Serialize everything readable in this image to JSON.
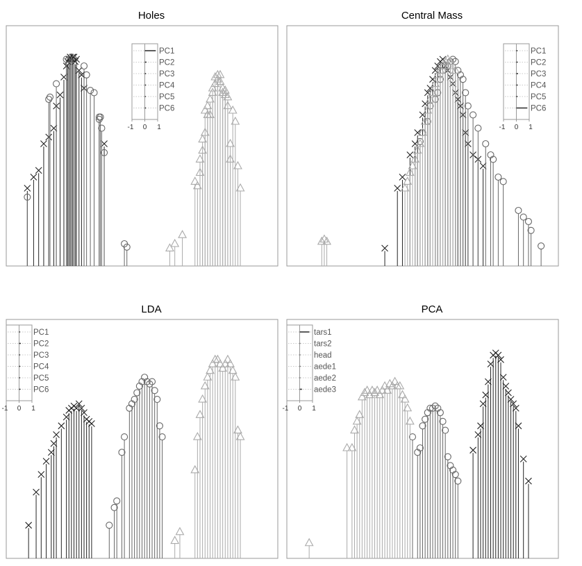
{
  "figure": {
    "colors": {
      "dark": "#222222",
      "mid": "#666666",
      "light": "#aaaaaa",
      "frame": "#999999"
    },
    "markers": {
      "dark": "x",
      "mid": "circle",
      "light": "triangle"
    }
  },
  "chart_data": [
    {
      "type": "scatter",
      "subtype": "grand-tour-stem-plot",
      "title": "Holes",
      "xlabel": "",
      "ylabel": "",
      "xlim": [
        0,
        1
      ],
      "ylim": [
        0,
        1
      ],
      "axis_ticks_visible": false,
      "legend": {
        "placement": "top-center-left",
        "labels": [
          "PC1",
          "PC2",
          "PC3",
          "PC4",
          "PC5",
          "PC6"
        ],
        "ticks": [
          "-1",
          "0",
          "1"
        ],
        "weights": [
          0.95,
          0.15,
          0.1,
          0.1,
          0.08,
          0.1
        ]
      },
      "series": [
        {
          "group": "dark",
          "marker": "x",
          "x": [
            0.045,
            0.07,
            0.09,
            0.11,
            0.13,
            0.15,
            0.16,
            0.175,
            0.19,
            0.2,
            0.205,
            0.21,
            0.215,
            0.22,
            0.225,
            0.23,
            0.235,
            0.24,
            0.25,
            0.26,
            0.27,
            0.35
          ],
          "y": [
            0.35,
            0.4,
            0.43,
            0.55,
            0.58,
            0.62,
            0.72,
            0.77,
            0.85,
            0.9,
            0.92,
            0.93,
            0.94,
            0.93,
            0.94,
            0.94,
            0.92,
            0.93,
            0.88,
            0.86,
            0.8,
            0.55
          ]
        },
        {
          "group": "mid",
          "marker": "circle",
          "x": [
            0.045,
            0.13,
            0.135,
            0.16,
            0.2,
            0.21,
            0.22,
            0.23,
            0.27,
            0.28,
            0.295,
            0.31,
            0.33,
            0.33,
            0.335,
            0.34,
            0.35,
            0.43,
            0.44
          ],
          "y": [
            0.31,
            0.75,
            0.76,
            0.82,
            0.93,
            0.93,
            0.94,
            0.93,
            0.9,
            0.86,
            0.79,
            0.78,
            0.67,
            0.66,
            0.67,
            0.62,
            0.51,
            0.1,
            0.085
          ]
        },
        {
          "group": "light",
          "marker": "triangle",
          "x": [
            0.61,
            0.63,
            0.66,
            0.71,
            0.72,
            0.73,
            0.73,
            0.74,
            0.74,
            0.75,
            0.75,
            0.76,
            0.76,
            0.77,
            0.77,
            0.78,
            0.78,
            0.79,
            0.79,
            0.8,
            0.8,
            0.81,
            0.81,
            0.82,
            0.82,
            0.83,
            0.83,
            0.84,
            0.84,
            0.85,
            0.85,
            0.86,
            0.87,
            0.88,
            0.89
          ],
          "y": [
            0.08,
            0.1,
            0.14,
            0.38,
            0.36,
            0.42,
            0.48,
            0.52,
            0.57,
            0.6,
            0.7,
            0.68,
            0.72,
            0.75,
            0.68,
            0.8,
            0.78,
            0.82,
            0.85,
            0.84,
            0.86,
            0.83,
            0.86,
            0.8,
            0.78,
            0.79,
            0.77,
            0.76,
            0.72,
            0.55,
            0.48,
            0.7,
            0.65,
            0.45,
            0.35
          ]
        }
      ]
    },
    {
      "type": "scatter",
      "subtype": "grand-tour-stem-plot",
      "title": "Central Mass",
      "xlabel": "",
      "ylabel": "",
      "xlim": [
        0,
        1
      ],
      "ylim": [
        0,
        1
      ],
      "axis_ticks_visible": false,
      "legend": {
        "placement": "top-right",
        "labels": [
          "PC1",
          "PC2",
          "PC3",
          "PC4",
          "PC5",
          "PC6"
        ],
        "ticks": [
          "-1",
          "0",
          "1"
        ],
        "weights": [
          0.1,
          0.12,
          0.15,
          0.12,
          0.1,
          0.95
        ]
      },
      "series": [
        {
          "group": "dark",
          "marker": "x",
          "x": [
            0.35,
            0.4,
            0.42,
            0.45,
            0.47,
            0.48,
            0.5,
            0.51,
            0.52,
            0.53,
            0.54,
            0.55,
            0.56,
            0.57,
            0.58,
            0.59,
            0.6,
            0.61,
            0.62,
            0.63,
            0.64,
            0.65,
            0.66,
            0.67,
            0.68,
            0.7,
            0.72,
            0.74
          ],
          "y": [
            0.08,
            0.35,
            0.4,
            0.5,
            0.55,
            0.6,
            0.68,
            0.73,
            0.78,
            0.8,
            0.84,
            0.88,
            0.9,
            0.92,
            0.93,
            0.9,
            0.88,
            0.85,
            0.82,
            0.78,
            0.75,
            0.72,
            0.68,
            0.6,
            0.55,
            0.5,
            0.48,
            0.45
          ]
        },
        {
          "group": "mid",
          "marker": "circle",
          "x": [
            0.49,
            0.5,
            0.52,
            0.53,
            0.55,
            0.56,
            0.57,
            0.58,
            0.59,
            0.6,
            0.61,
            0.62,
            0.63,
            0.64,
            0.65,
            0.66,
            0.67,
            0.68,
            0.7,
            0.72,
            0.75,
            0.77,
            0.78,
            0.8,
            0.82,
            0.88,
            0.9,
            0.92,
            0.93,
            0.97
          ],
          "y": [
            0.56,
            0.6,
            0.65,
            0.72,
            0.75,
            0.78,
            0.84,
            0.88,
            0.9,
            0.9,
            0.92,
            0.93,
            0.92,
            0.88,
            0.86,
            0.84,
            0.78,
            0.72,
            0.68,
            0.62,
            0.55,
            0.5,
            0.48,
            0.4,
            0.38,
            0.25,
            0.22,
            0.2,
            0.16,
            0.09
          ]
        },
        {
          "group": "light",
          "marker": "triangle",
          "x": [
            0.1,
            0.11,
            0.12,
            0.43,
            0.44,
            0.45,
            0.46,
            0.47,
            0.48,
            0.49,
            0.5,
            0.51,
            0.52,
            0.53,
            0.54,
            0.55,
            0.56,
            0.57,
            0.58,
            0.59,
            0.6,
            0.61,
            0.62,
            0.63
          ],
          "y": [
            0.11,
            0.12,
            0.11,
            0.35,
            0.38,
            0.42,
            0.45,
            0.48,
            0.52,
            0.55,
            0.6,
            0.65,
            0.7,
            0.75,
            0.78,
            0.82,
            0.86,
            0.88,
            0.9,
            0.92,
            0.93,
            0.92,
            0.9,
            0.88
          ]
        }
      ]
    },
    {
      "type": "scatter",
      "subtype": "grand-tour-stem-plot",
      "title": "LDA",
      "xlabel": "",
      "ylabel": "",
      "xlim": [
        0,
        1
      ],
      "ylim": [
        0,
        1
      ],
      "axis_ticks_visible": false,
      "legend": {
        "placement": "top-left",
        "labels": [
          "PC1",
          "PC2",
          "PC3",
          "PC4",
          "PC5",
          "PC6"
        ],
        "ticks": [
          "-1",
          "0",
          "1"
        ],
        "weights": [
          0.08,
          0.15,
          0.08,
          0.1,
          0.08,
          0.12
        ]
      },
      "series": [
        {
          "group": "dark",
          "marker": "x",
          "x": [
            0.05,
            0.08,
            0.1,
            0.12,
            0.14,
            0.15,
            0.16,
            0.18,
            0.2,
            0.21,
            0.22,
            0.23,
            0.24,
            0.25,
            0.26,
            0.27,
            0.28,
            0.29,
            0.3
          ],
          "y": [
            0.15,
            0.3,
            0.38,
            0.44,
            0.48,
            0.52,
            0.56,
            0.6,
            0.64,
            0.67,
            0.68,
            0.69,
            0.68,
            0.7,
            0.68,
            0.66,
            0.63,
            0.62,
            0.61
          ]
        },
        {
          "group": "mid",
          "marker": "circle",
          "x": [
            0.37,
            0.39,
            0.4,
            0.42,
            0.43,
            0.45,
            0.46,
            0.47,
            0.48,
            0.49,
            0.5,
            0.51,
            0.52,
            0.53,
            0.54,
            0.55,
            0.56,
            0.57,
            0.58
          ],
          "y": [
            0.15,
            0.23,
            0.26,
            0.48,
            0.55,
            0.68,
            0.7,
            0.72,
            0.75,
            0.78,
            0.8,
            0.82,
            0.8,
            0.79,
            0.8,
            0.76,
            0.72,
            0.6,
            0.55
          ]
        },
        {
          "group": "light",
          "marker": "triangle",
          "x": [
            0.63,
            0.65,
            0.71,
            0.72,
            0.73,
            0.74,
            0.75,
            0.76,
            0.77,
            0.78,
            0.79,
            0.8,
            0.81,
            0.82,
            0.83,
            0.84,
            0.85,
            0.86,
            0.87,
            0.88,
            0.89
          ],
          "y": [
            0.08,
            0.12,
            0.4,
            0.55,
            0.65,
            0.72,
            0.78,
            0.82,
            0.85,
            0.88,
            0.9,
            0.9,
            0.88,
            0.86,
            0.88,
            0.9,
            0.88,
            0.85,
            0.82,
            0.58,
            0.55
          ]
        }
      ]
    },
    {
      "type": "scatter",
      "subtype": "grand-tour-stem-plot",
      "title": "PCA",
      "xlabel": "",
      "ylabel": "",
      "xlim": [
        0,
        1
      ],
      "ylim": [
        0,
        1
      ],
      "axis_ticks_visible": false,
      "legend": {
        "placement": "top-left",
        "labels": [
          "tars1",
          "tars2",
          "head",
          "aede1",
          "aede2",
          "aede3"
        ],
        "ticks": [
          "-1",
          "0",
          "1"
        ],
        "weights": [
          0.85,
          0.05,
          0.05,
          0.06,
          0.05,
          0.2
        ]
      },
      "series": [
        {
          "group": "dark",
          "marker": "x",
          "x": [
            0.7,
            0.72,
            0.73,
            0.74,
            0.75,
            0.76,
            0.77,
            0.78,
            0.79,
            0.8,
            0.81,
            0.82,
            0.83,
            0.84,
            0.85,
            0.86,
            0.87,
            0.88,
            0.9,
            0.92
          ],
          "y": [
            0.49,
            0.56,
            0.6,
            0.7,
            0.74,
            0.8,
            0.88,
            0.92,
            0.93,
            0.92,
            0.9,
            0.82,
            0.78,
            0.75,
            0.72,
            0.7,
            0.68,
            0.6,
            0.45,
            0.35
          ]
        },
        {
          "group": "mid",
          "marker": "circle",
          "x": [
            0.46,
            0.48,
            0.49,
            0.5,
            0.51,
            0.52,
            0.53,
            0.54,
            0.55,
            0.56,
            0.57,
            0.58,
            0.59,
            0.6,
            0.61,
            0.62,
            0.63,
            0.64
          ],
          "y": [
            0.55,
            0.48,
            0.5,
            0.6,
            0.63,
            0.66,
            0.68,
            0.68,
            0.69,
            0.68,
            0.66,
            0.62,
            0.58,
            0.46,
            0.42,
            0.4,
            0.38,
            0.35
          ]
        },
        {
          "group": "light",
          "marker": "triangle",
          "x": [
            0.05,
            0.2,
            0.22,
            0.23,
            0.24,
            0.25,
            0.26,
            0.27,
            0.28,
            0.29,
            0.3,
            0.31,
            0.32,
            0.33,
            0.34,
            0.35,
            0.36,
            0.37,
            0.38,
            0.39,
            0.4,
            0.41,
            0.42,
            0.43,
            0.44,
            0.45
          ],
          "y": [
            0.07,
            0.5,
            0.5,
            0.58,
            0.62,
            0.65,
            0.73,
            0.75,
            0.76,
            0.74,
            0.76,
            0.75,
            0.76,
            0.74,
            0.76,
            0.78,
            0.76,
            0.79,
            0.78,
            0.8,
            0.78,
            0.78,
            0.74,
            0.72,
            0.68,
            0.62
          ]
        }
      ]
    }
  ]
}
